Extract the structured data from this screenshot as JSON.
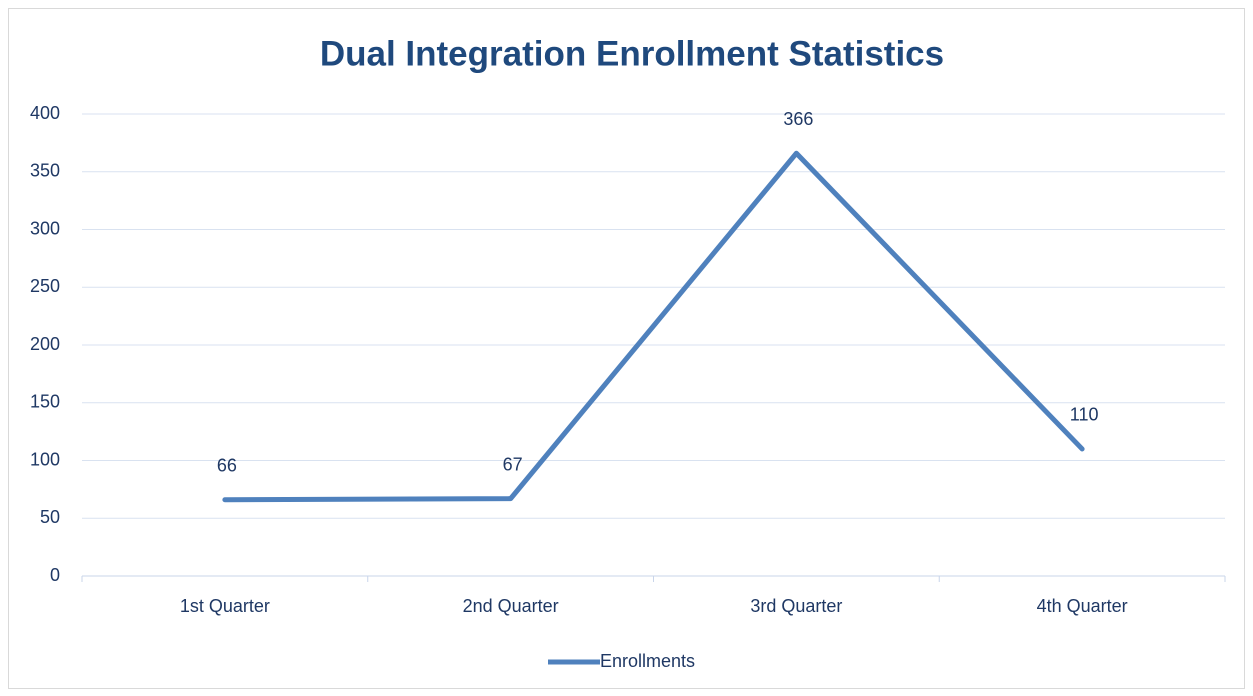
{
  "chart_data": {
    "type": "line",
    "title": "Dual Integration Enrollment Statistics",
    "categories": [
      "1st Quarter",
      "2nd Quarter",
      "3rd Quarter",
      "4th Quarter"
    ],
    "series": [
      {
        "name": "Enrollments",
        "color": "#4f81bd",
        "values": [
          66,
          67,
          366,
          110
        ]
      }
    ],
    "ylim": [
      0,
      400
    ],
    "yticks": [
      0,
      50,
      100,
      150,
      200,
      250,
      300,
      350,
      400
    ],
    "grid": true,
    "legend": "bottom"
  }
}
